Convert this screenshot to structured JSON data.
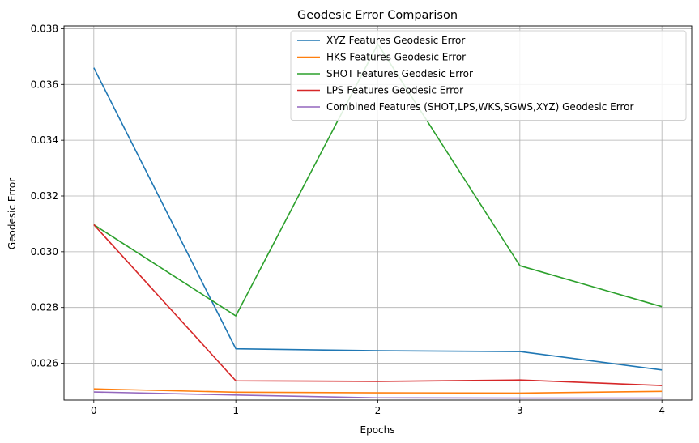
{
  "chart_data": {
    "type": "line",
    "title": "Geodesic Error Comparison",
    "xlabel": "Epochs",
    "ylabel": "Geodesic Error",
    "x": [
      0,
      1,
      2,
      3,
      4
    ],
    "xticks": [
      "0",
      "1",
      "2",
      "3",
      "4"
    ],
    "yticks": [
      "0.026",
      "0.028",
      "0.030",
      "0.032",
      "0.034",
      "0.036",
      "0.038"
    ],
    "xlim": [
      -0.21,
      4.21
    ],
    "ylim": [
      0.02468,
      0.0381
    ],
    "grid": true,
    "legend_position": "top-right",
    "series": [
      {
        "name": "XYZ Features Geodesic Error",
        "color": "#1f77b4",
        "values": [
          0.0366,
          0.02652,
          0.02645,
          0.02642,
          0.02576
        ]
      },
      {
        "name": "HKS Features Geodesic Error",
        "color": "#ff7f0e",
        "values": [
          0.02508,
          0.02496,
          0.02494,
          0.02493,
          0.02499
        ]
      },
      {
        "name": "SHOT Features Geodesic Error",
        "color": "#2ca02c",
        "values": [
          0.03097,
          0.0277,
          0.03745,
          0.0295,
          0.02803
        ]
      },
      {
        "name": "LPS Features Geodesic Error",
        "color": "#d62728",
        "values": [
          0.03097,
          0.02537,
          0.02535,
          0.0254,
          0.0252
        ]
      },
      {
        "name": "Combined Features (SHOT,LPS,WKS,SGWS,XYZ) Geodesic Error",
        "color": "#9467bd",
        "values": [
          0.02497,
          0.02486,
          0.02476,
          0.02475,
          0.02475
        ]
      }
    ]
  }
}
